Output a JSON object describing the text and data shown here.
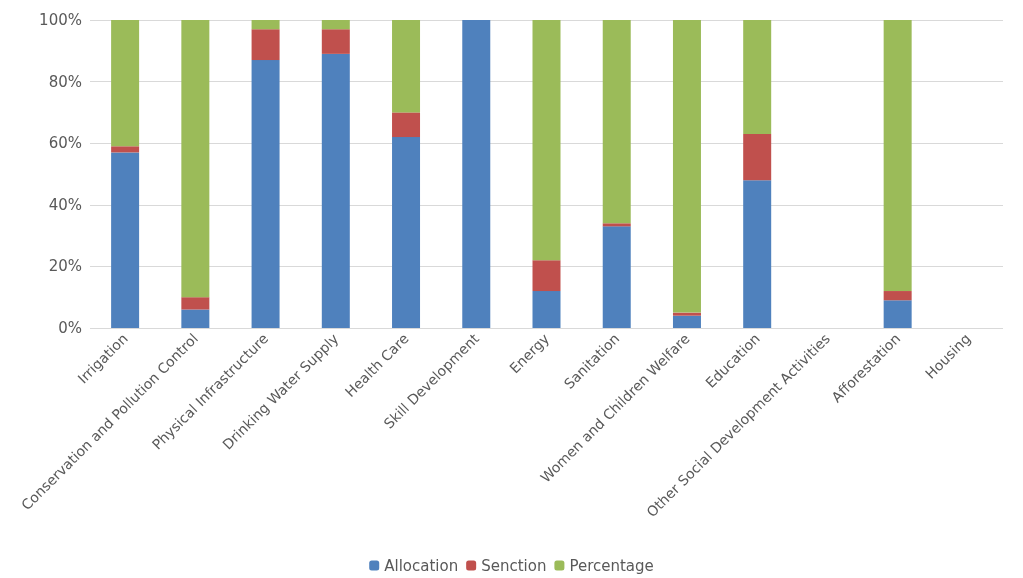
{
  "chart_data": {
    "type": "bar",
    "stacked": true,
    "categories": [
      "Irrigation",
      "Conservation and Pollution Control",
      "Physical Infrastructure",
      "Drinking Water Supply",
      "Health Care",
      "Skill Development",
      "Energy",
      "Sanitation",
      "Women and Children Welfare",
      "Education",
      "Other Social Development Activities",
      "Afforestation",
      "Housing"
    ],
    "series": [
      {
        "name": "Allocation",
        "color": "#4f81bd",
        "values": [
          57,
          6,
          87,
          89,
          62,
          100,
          12,
          33,
          4,
          48,
          0,
          9,
          0
        ]
      },
      {
        "name": "Senction",
        "color": "#c0504d",
        "values": [
          2,
          4,
          10,
          8,
          8,
          0,
          10,
          1,
          1,
          15,
          0,
          3,
          0
        ]
      },
      {
        "name": "Percentage",
        "color": "#9bbb59",
        "values": [
          41,
          90,
          3,
          3,
          30,
          0,
          78,
          66,
          95,
          37,
          0,
          88,
          0
        ]
      }
    ],
    "ylim": [
      0,
      100
    ],
    "yticks": [
      {
        "value": 0,
        "label": "0%"
      },
      {
        "value": 20,
        "label": "20%"
      },
      {
        "value": 40,
        "label": "40%"
      },
      {
        "value": 60,
        "label": "60%"
      },
      {
        "value": 80,
        "label": "80%"
      },
      {
        "value": 100,
        "label": "100%"
      }
    ],
    "grid": "y",
    "legend": "bottom"
  }
}
